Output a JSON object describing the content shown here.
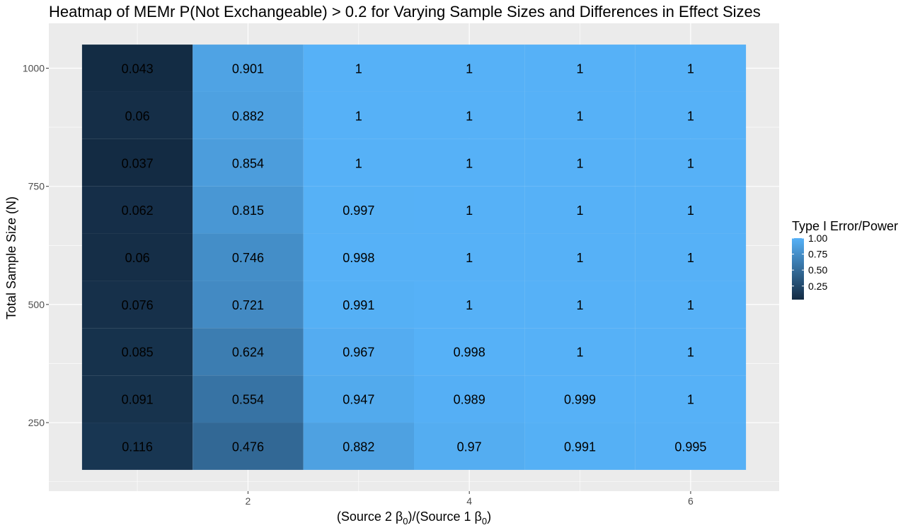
{
  "chart_data": {
    "type": "heatmap",
    "title": "Heatmap of MEMr P(Not Exchangeable) > 0.2 for Varying Sample Sizes and Differences in Effect Sizes",
    "xlabel": "(Source 2 β0)/(Source 1 β0)",
    "xlabel_parts": {
      "prefix": "(Source 2 β",
      "sub1": "0",
      "middle": ")/(Source 1 β",
      "sub2": "0",
      "suffix": ")"
    },
    "ylabel": "Total Sample Size (N)",
    "x": [
      1,
      2,
      3,
      4,
      5,
      6
    ],
    "y": [
      200,
      300,
      400,
      500,
      600,
      700,
      800,
      900,
      1000
    ],
    "x_ticks": [
      2,
      4,
      6
    ],
    "y_ticks": [
      250,
      500,
      750,
      1000
    ],
    "xlim": [
      0.5,
      6.5
    ],
    "ylim": [
      150,
      1050
    ],
    "values": [
      [
        0.116,
        0.476,
        0.882,
        0.97,
        0.991,
        0.995
      ],
      [
        0.091,
        0.554,
        0.947,
        0.989,
        0.999,
        1
      ],
      [
        0.085,
        0.624,
        0.967,
        0.998,
        1,
        1
      ],
      [
        0.076,
        0.721,
        0.991,
        1,
        1,
        1
      ],
      [
        0.06,
        0.746,
        0.998,
        1,
        1,
        1
      ],
      [
        0.062,
        0.815,
        0.997,
        1,
        1,
        1
      ],
      [
        0.037,
        0.854,
        1,
        1,
        1,
        1
      ],
      [
        0.06,
        0.882,
        1,
        1,
        1,
        1
      ],
      [
        0.043,
        0.901,
        1,
        1,
        1,
        1
      ]
    ],
    "legend": {
      "title": "Type I Error/Power",
      "breaks": [
        "1.00",
        "0.75",
        "0.50",
        "0.25"
      ],
      "break_values": [
        1.0,
        0.75,
        0.5,
        0.25
      ],
      "range": [
        0.037,
        1.0
      ],
      "low_color": "#132B43",
      "high_color": "#56B1F7",
      "placement": "right"
    },
    "panel_background": "#EBEBEB",
    "grid_color": "#FFFFFF",
    "grid": true
  }
}
